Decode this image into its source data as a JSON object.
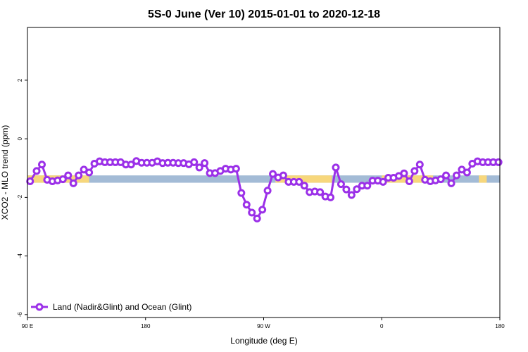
{
  "chart_data": {
    "type": "line",
    "title": "5S-0 June (Ver 10)   2015-01-01 to 2020-12-18",
    "xlabel": "Longitude (deg E)",
    "ylabel": "XCO2 - MLO trend (ppm)",
    "xlim": [
      90,
      450
    ],
    "ylim": [
      -6.1,
      3.8
    ],
    "x_ticks": [
      {
        "value": 90,
        "label": "90 E"
      },
      {
        "value": 180,
        "label": "180"
      },
      {
        "value": 270,
        "label": "90 W"
      },
      {
        "value": 360,
        "label": "0"
      },
      {
        "value": 450,
        "label": "180"
      }
    ],
    "y_ticks": [
      {
        "value": 2,
        "label": "2"
      },
      {
        "value": 0,
        "label": "0"
      },
      {
        "value": -2,
        "label": "-2"
      },
      {
        "value": -4,
        "label": "-4"
      },
      {
        "value": -6,
        "label": "-6"
      }
    ],
    "legend": {
      "position": "bottom-left",
      "entries": [
        "Land (Nadir&Glint) and Ocean (Glint)"
      ]
    },
    "surface_band": {
      "y_range": [
        -1.5,
        -1.25
      ],
      "ocean_color": "#a3bbd6",
      "land_color": "#f7d77c",
      "land_segments": [
        [
          90,
          137
        ],
        [
          279,
          322
        ],
        [
          360,
          394
        ],
        [
          393,
          399
        ],
        [
          434,
          440
        ]
      ]
    },
    "series": [
      {
        "name": "Land (Nadir&Glint) and Ocean (Glint)",
        "color": "#9b30e8",
        "x": [
          92,
          97,
          101,
          105,
          109,
          113,
          117,
          121,
          125,
          129,
          133,
          137,
          141,
          145,
          149,
          153,
          157,
          161,
          165,
          169,
          173,
          177,
          181,
          185,
          189,
          193,
          197,
          201,
          205,
          209,
          213,
          217,
          221,
          225,
          229,
          233,
          237,
          241,
          245,
          249,
          253,
          257,
          261,
          265,
          269,
          273,
          277,
          281,
          285,
          289,
          293,
          297,
          301,
          305,
          309,
          313,
          317,
          321,
          325,
          329,
          333,
          337,
          341,
          345,
          349,
          353,
          357,
          361,
          365,
          369,
          373,
          377,
          381,
          385,
          389,
          393,
          397,
          401,
          405,
          409,
          413,
          417,
          421,
          425,
          429,
          433,
          437,
          441,
          445,
          449
        ],
        "y": [
          -1.45,
          -1.1,
          -0.88,
          -1.4,
          -1.45,
          -1.42,
          -1.38,
          -1.25,
          -1.52,
          -1.25,
          -1.05,
          -1.15,
          -0.85,
          -0.77,
          -0.8,
          -0.8,
          -0.8,
          -0.8,
          -0.88,
          -0.88,
          -0.76,
          -0.82,
          -0.82,
          -0.82,
          -0.77,
          -0.83,
          -0.82,
          -0.82,
          -0.83,
          -0.83,
          -0.87,
          -0.8,
          -0.98,
          -0.83,
          -1.17,
          -1.17,
          -1.1,
          -1.02,
          -1.05,
          -1.02,
          -1.85,
          -2.25,
          -2.52,
          -2.72,
          -2.42,
          -1.77,
          -1.2,
          -1.32,
          -1.25,
          -1.47,
          -1.47,
          -1.47,
          -1.6,
          -1.82,
          -1.8,
          -1.82,
          -1.97,
          -2.0,
          -0.98,
          -1.55,
          -1.73,
          -1.92,
          -1.72,
          -1.6,
          -1.6,
          -1.43,
          -1.43,
          -1.47,
          -1.33,
          -1.33,
          -1.27,
          -1.18,
          -1.45,
          -1.1,
          -0.88,
          -1.4,
          -1.45,
          -1.42,
          -1.38,
          -1.25,
          -1.52,
          -1.25,
          -1.05,
          -1.15,
          -0.85,
          -0.77,
          -0.8,
          -0.8,
          -0.8,
          -0.8
        ]
      }
    ]
  }
}
